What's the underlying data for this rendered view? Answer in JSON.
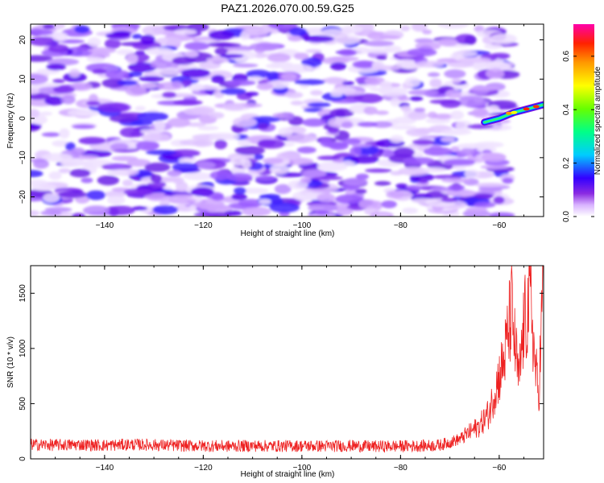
{
  "title": "PAZ1.2026.070.00.59.G25",
  "chart_data": [
    {
      "type": "heatmap",
      "xlabel": "Height of straight line (km)",
      "ylabel": "Frequency (Hz)",
      "xlim": [
        -155,
        -51
      ],
      "ylim": [
        -25,
        24
      ],
      "xticks": [
        -140,
        -120,
        -100,
        -80,
        -60
      ],
      "yticks": [
        -20,
        -10,
        0,
        10,
        20
      ],
      "colorbar": {
        "label": "Normalized spectral amplitude",
        "range": [
          0,
          0.72
        ],
        "ticks": [
          0.0,
          0.2,
          0.4,
          0.6
        ],
        "tick_labels": [
          "0.0",
          "0.2",
          "0.4",
          "0.6"
        ]
      },
      "features": [
        {
          "description": "background noise blobs",
          "x_range": [
            -155,
            -62
          ],
          "y_range": [
            -25,
            24
          ],
          "amplitude_range": [
            0.02,
            0.1
          ]
        },
        {
          "description": "signal ridge",
          "points": [
            [
              -63,
              -1
            ],
            [
              -60,
              0
            ],
            [
              -57,
              1.5
            ],
            [
              -54,
              2.5
            ],
            [
              -51,
              3.5
            ]
          ],
          "peak_amplitude": 0.7
        }
      ]
    },
    {
      "type": "line",
      "xlabel": "Height of straight line (km)",
      "ylabel": "SNR (10 * v/v)",
      "xlim": [
        -155,
        -51
      ],
      "ylim": [
        0,
        1750
      ],
      "xticks": [
        -140,
        -120,
        -100,
        -80,
        -60
      ],
      "yticks": [
        0,
        500,
        1000,
        1500
      ],
      "color": "#ee2222",
      "series": [
        {
          "name": "SNR",
          "x": [
            -155,
            -150,
            -145,
            -140,
            -135,
            -130,
            -125,
            -120,
            -115,
            -110,
            -105,
            -100,
            -95,
            -90,
            -85,
            -80,
            -75,
            -72,
            -70,
            -68,
            -66,
            -64,
            -62,
            -61,
            -60,
            -59,
            -58,
            -57.5,
            -57,
            -56,
            -55,
            -54,
            -53.5,
            -53,
            -52,
            -51
          ],
          "values": [
            130,
            125,
            128,
            122,
            130,
            126,
            120,
            118,
            115,
            118,
            116,
            118,
            115,
            118,
            112,
            115,
            118,
            125,
            150,
            180,
            240,
            300,
            420,
            600,
            750,
            900,
            1200,
            1350,
            1100,
            700,
            1200,
            1380,
            1450,
            1000,
            550,
            1740
          ]
        }
      ]
    }
  ]
}
